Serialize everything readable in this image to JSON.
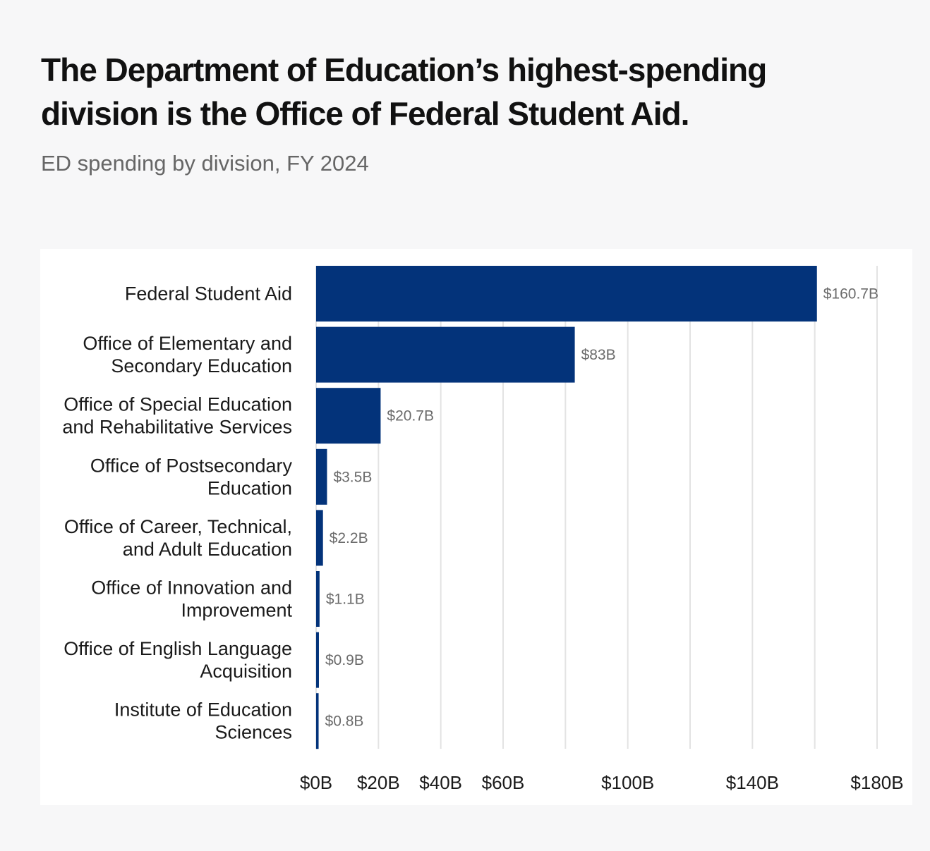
{
  "header": {
    "title": "The Department of Education’s highest-spending division is the Office of Federal Student Aid.",
    "subtitle": "ED spending by division, FY 2024"
  },
  "colors": {
    "bar": "#03337a",
    "gridline": "#e3e3e3",
    "page_background": "#f7f7f8",
    "panel_background": "#ffffff"
  },
  "chart_data": {
    "type": "bar",
    "orientation": "horizontal",
    "title": "The Department of Education’s highest-spending division is the Office of Federal Student Aid.",
    "subtitle": "ED spending by division, FY 2024",
    "xlabel": "",
    "ylabel": "",
    "unit": "billions of dollars",
    "categories": [
      [
        "Federal Student Aid"
      ],
      [
        "Office of Elementary and",
        "Secondary Education"
      ],
      [
        "Office of Special Education",
        "and Rehabilitative Services"
      ],
      [
        "Office of Postsecondary",
        "Education"
      ],
      [
        "Office of Career, Technical,",
        "and Adult Education"
      ],
      [
        "Office of Innovation and",
        "Improvement"
      ],
      [
        "Office of English Language",
        "Acquisition"
      ],
      [
        "Institute of Education",
        "Sciences"
      ]
    ],
    "values": [
      160.7,
      83,
      20.7,
      3.5,
      2.2,
      1.1,
      0.9,
      0.8
    ],
    "value_labels": [
      "$160.7B",
      "$83B",
      "$20.7B",
      "$3.5B",
      "$2.2B",
      "$1.1B",
      "$0.9B",
      "$0.8B"
    ],
    "xlim": [
      0,
      180
    ],
    "gridlines": [
      0,
      20,
      40,
      60,
      80,
      100,
      120,
      140,
      160,
      180
    ],
    "tick_values": [
      0,
      20,
      40,
      60,
      100,
      140,
      180
    ],
    "tick_labels": [
      "$0B",
      "$20B",
      "$40B",
      "$60B",
      "$100B",
      "$140B",
      "$180B"
    ],
    "grid": true,
    "legend": "none"
  }
}
